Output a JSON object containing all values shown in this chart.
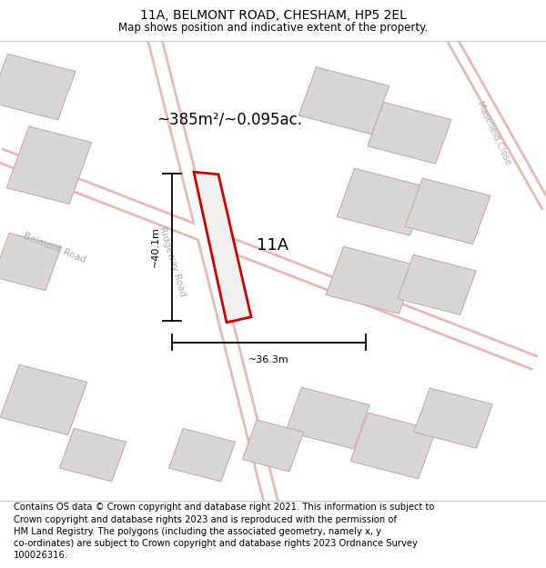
{
  "title": "11A, BELMONT ROAD, CHESHAM, HP5 2EL",
  "subtitle": "Map shows position and indicative extent of the property.",
  "footer": "Contains OS data © Crown copyright and database right 2021. This information is subject to\nCrown copyright and database rights 2023 and is reproduced with the permission of\nHM Land Registry. The polygons (including the associated geometry, namely x, y\nco-ordinates) are subject to Crown copyright and database rights 2023 Ordnance Survey\n100026316.",
  "bg_color": "#efefef",
  "title_fontsize": 10,
  "subtitle_fontsize": 8.5,
  "footer_fontsize": 7.2,
  "area_text": "~385m²/~0.095ac.",
  "label_11A": "11A",
  "dim_height": "~40.1m",
  "dim_width": "~36.3m",
  "road_color": "#ffffff",
  "road_outline_color": "#e8b8b8",
  "building_fill": "#d8d6d4",
  "building_edge": "#c8a0a0",
  "road_label_color": "#aaaaaa"
}
